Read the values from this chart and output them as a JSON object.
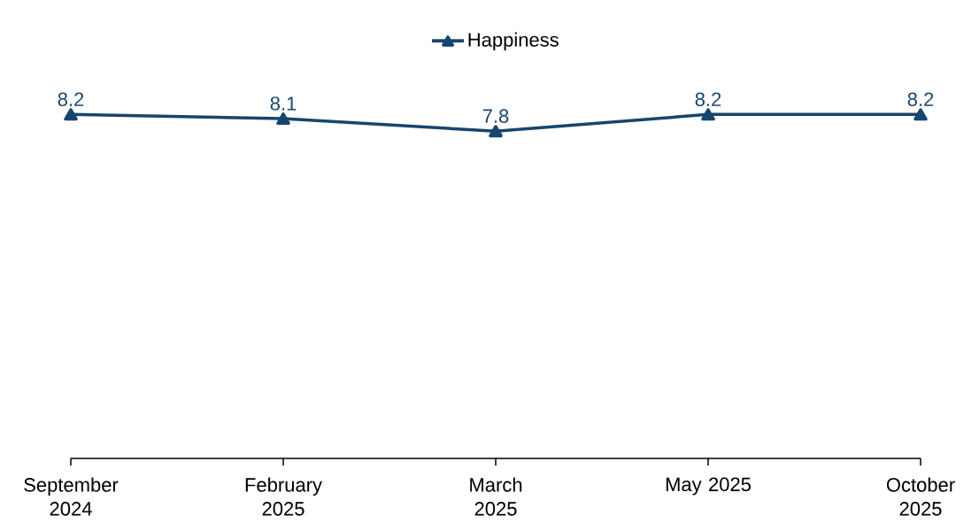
{
  "chart_data": {
    "type": "line",
    "categories": [
      "September 2024",
      "February 2025",
      "March 2025",
      "May 2025",
      "October 2025"
    ],
    "series": [
      {
        "name": "Happiness",
        "color": "#17456e",
        "values": [
          8.2,
          8.1,
          7.8,
          8.2,
          8.2
        ]
      }
    ],
    "marker": "triangle",
    "data_labels": true,
    "legend": "top"
  }
}
